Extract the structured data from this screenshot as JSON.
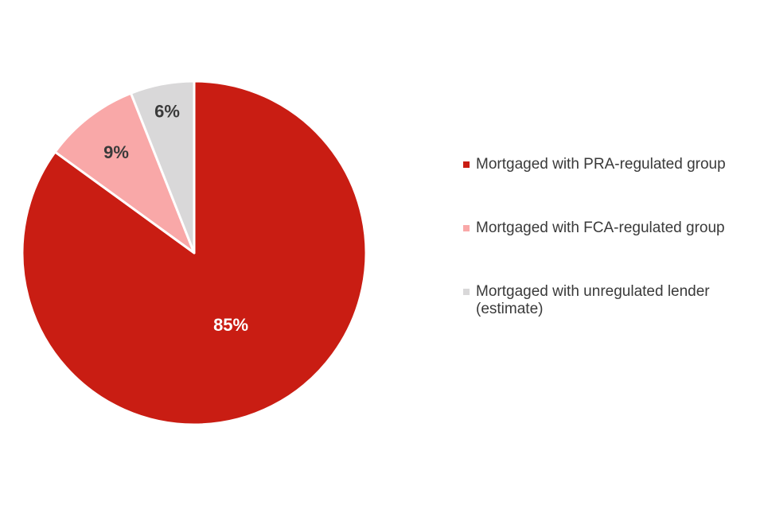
{
  "chart_data": {
    "type": "pie",
    "title": "",
    "slices": [
      {
        "label": "Mortgaged with PRA-regulated group",
        "value": 85,
        "display": "85%",
        "color": "#c91d13",
        "label_color": "#ffffff"
      },
      {
        "label": "Mortgaged with FCA-regulated group",
        "value": 9,
        "display": "9%",
        "color": "#f9a8a8",
        "label_color": "#3a3a3a"
      },
      {
        "label": "Mortgaged with unregulated lender (estimate)",
        "value": 6,
        "display": "6%",
        "color": "#d9d8d9",
        "label_color": "#3a3a3a"
      }
    ],
    "legend_position": "right"
  }
}
